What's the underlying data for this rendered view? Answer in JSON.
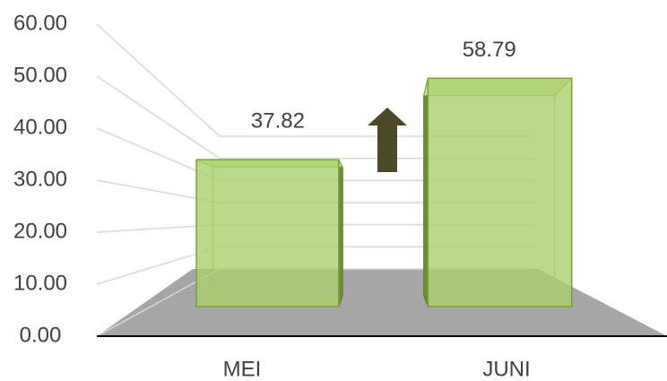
{
  "chart_data": {
    "type": "bar3d",
    "categories": [
      "MEI",
      "JUNI"
    ],
    "values": [
      37.82,
      58.79
    ],
    "color": "#a9d16b",
    "ylim": [
      0,
      60
    ],
    "yticks": [
      {
        "value": 0,
        "label": "0.00"
      },
      {
        "value": 10,
        "label": "10.00"
      },
      {
        "value": 20,
        "label": "20.00"
      },
      {
        "value": 30,
        "label": "30.00"
      },
      {
        "value": 40,
        "label": "40.00"
      },
      {
        "value": 50,
        "label": "50.00"
      },
      {
        "value": 60,
        "label": "60.00"
      }
    ],
    "grid": true
  }
}
